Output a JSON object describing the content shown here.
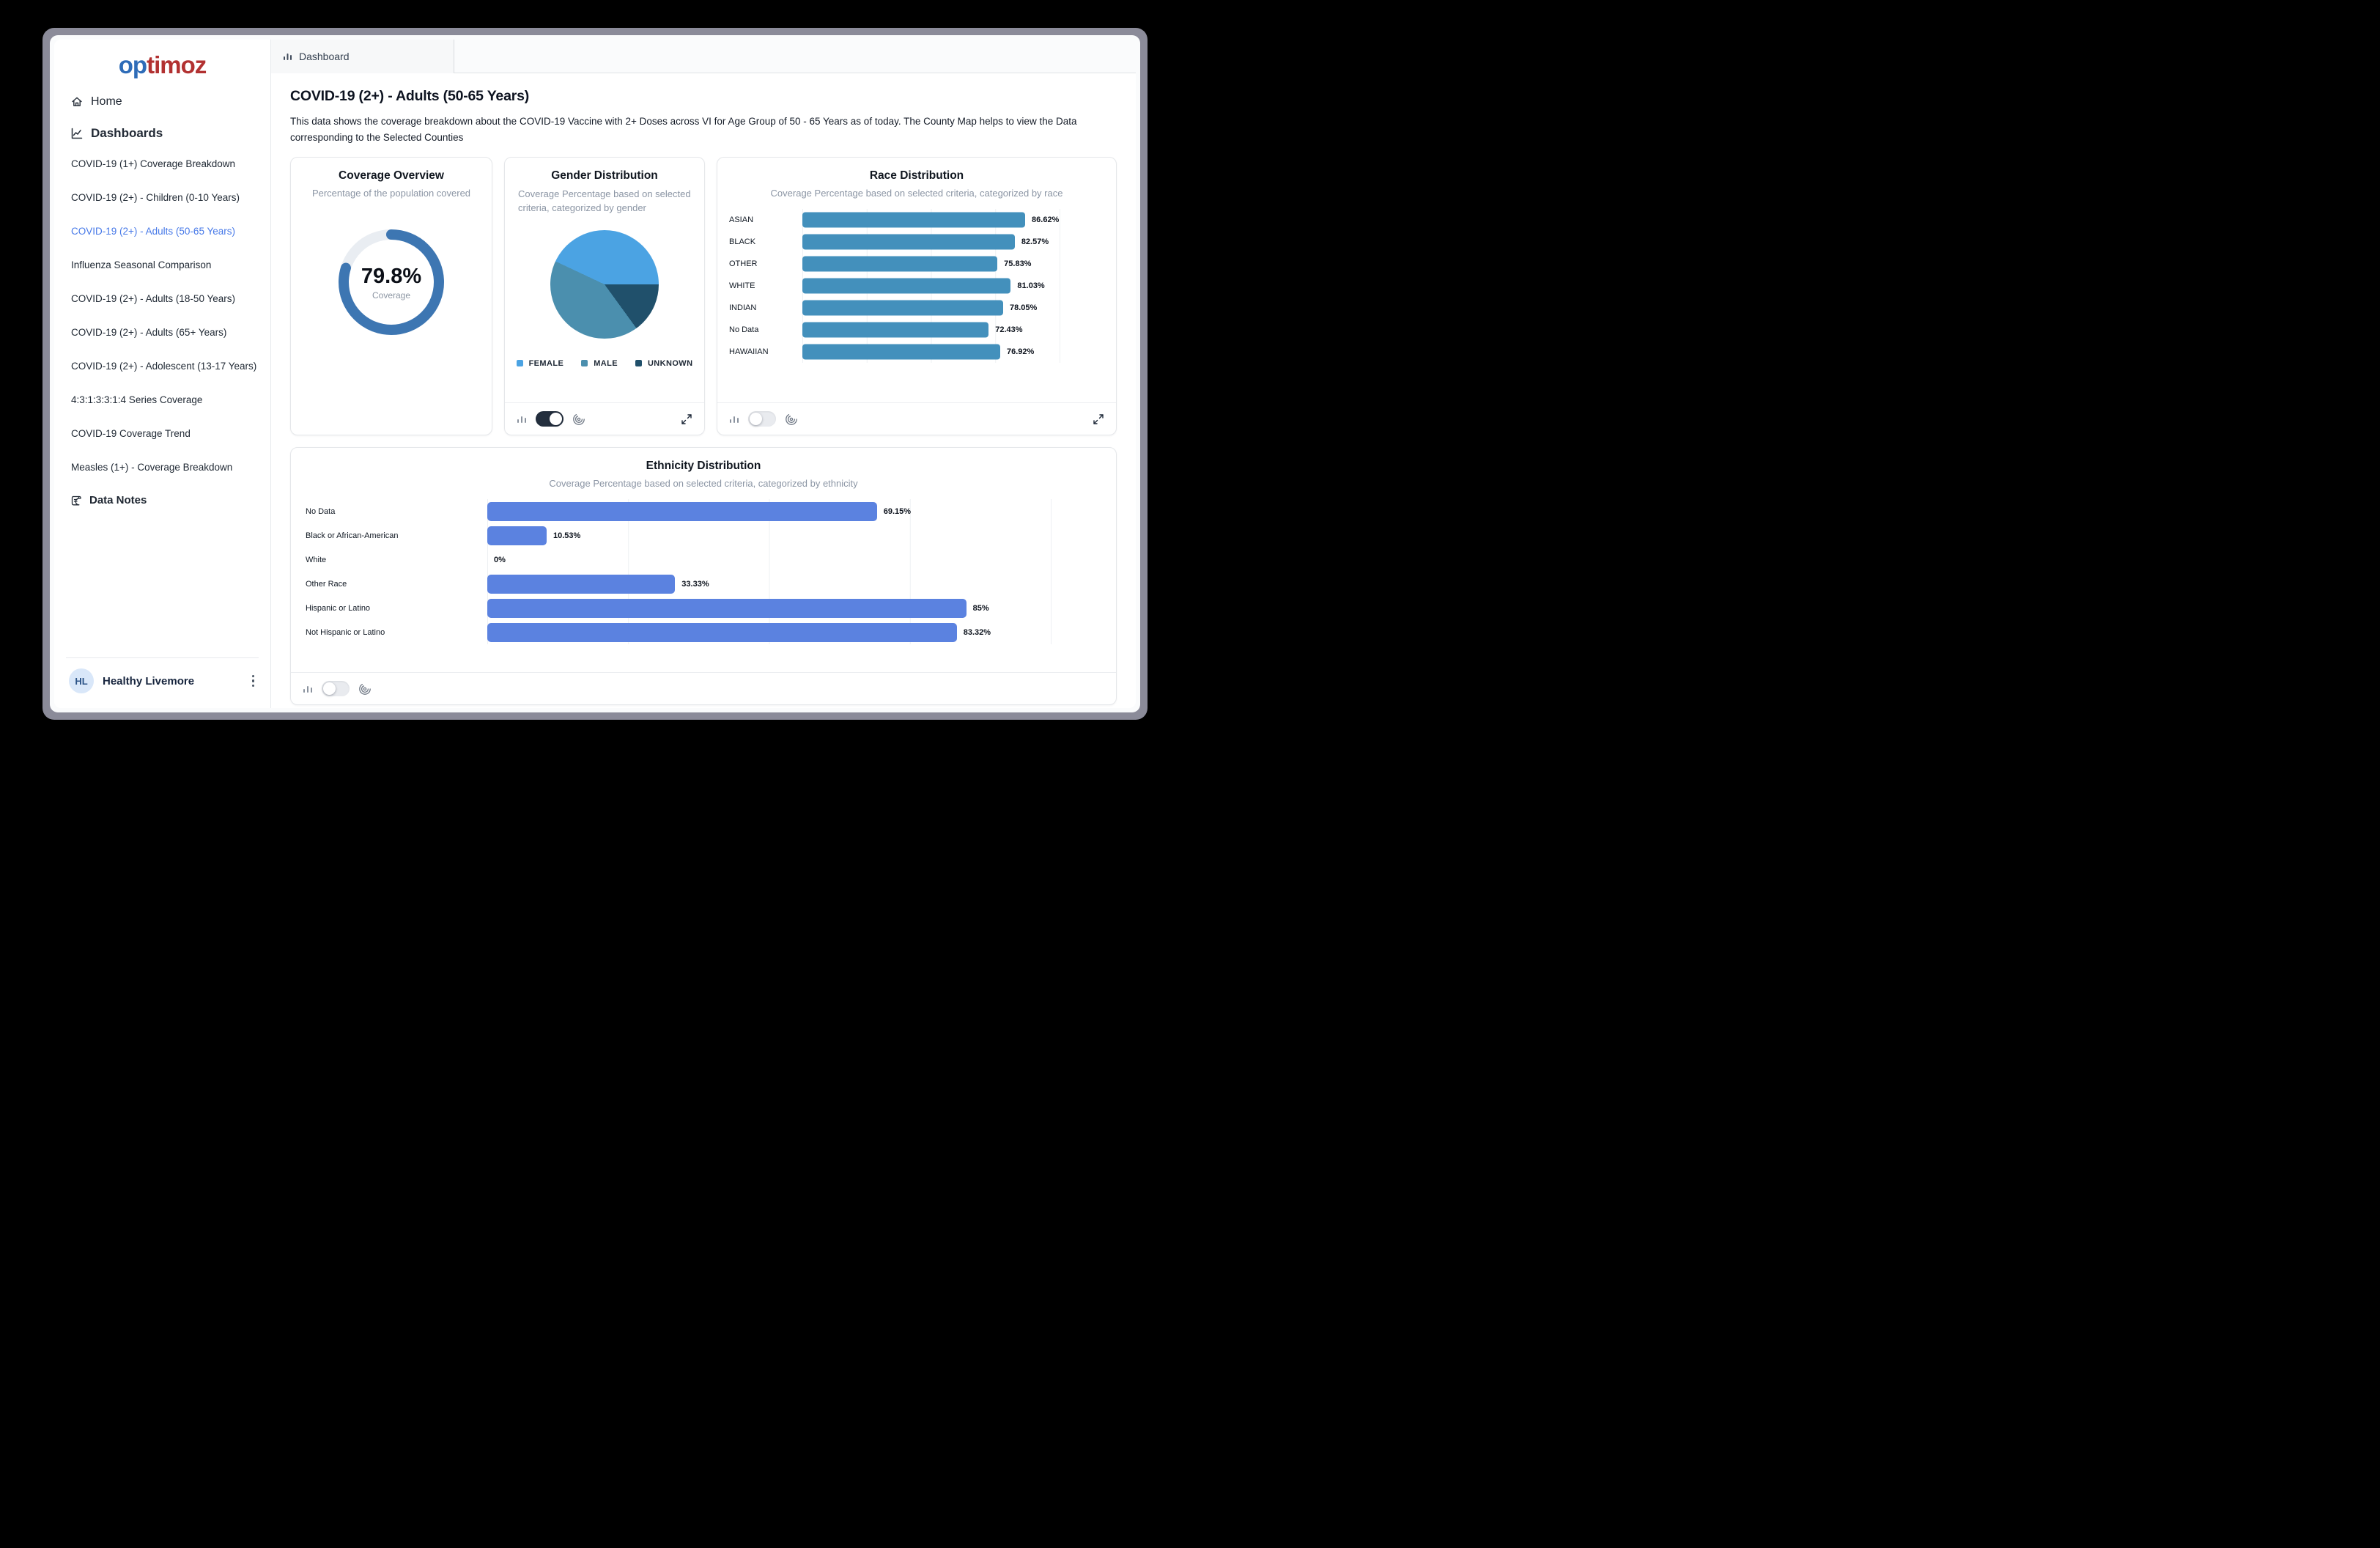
{
  "window": {
    "frame_color": "#8b8b99"
  },
  "sidebar": {
    "logo": {
      "text_primary": "op",
      "text_secondary": "timoz"
    },
    "home_label": "Home",
    "dashboards_label": "Dashboards",
    "items": [
      {
        "label": "COVID-19 (1+) Coverage Breakdown",
        "active": false
      },
      {
        "label": "COVID-19 (2+) - Children (0-10 Years)",
        "active": false
      },
      {
        "label": "COVID-19 (2+) - Adults (50-65 Years)",
        "active": true
      },
      {
        "label": "Influenza Seasonal Comparison",
        "active": false
      },
      {
        "label": "COVID-19 (2+) - Adults (18-50 Years)",
        "active": false
      },
      {
        "label": "COVID-19 (2+) - Adults (65+ Years)",
        "active": false
      },
      {
        "label": "COVID-19 (2+) - Adolescent (13-17 Years)",
        "active": false
      },
      {
        "label": "4:3:1:3:3:1:4 Series Coverage",
        "active": false
      },
      {
        "label": "COVID-19 Coverage Trend",
        "active": false
      },
      {
        "label": "Measles (1+) - Coverage Breakdown",
        "active": false
      }
    ],
    "data_notes_label": "Data Notes",
    "user": {
      "initials": "HL",
      "name": "Healthy Livemore"
    },
    "active_color": "#4779e8"
  },
  "tab": {
    "label": "Dashboard"
  },
  "page": {
    "title": "COVID-19 (2+) - Adults (50-65 Years)",
    "description": "This data shows the coverage breakdown about the COVID-19 Vaccine with 2+ Doses across VI for Age Group of 50 - 65 Years as of today. The County Map helps to view the Data corresponding to the Selected Counties"
  },
  "cards": {
    "coverage": {
      "title": "Coverage Overview",
      "subtitle": "Percentage of the population covered",
      "value": 79.8,
      "value_label": "79.8%",
      "caption": "Coverage",
      "ring_color": "#3d76b2",
      "track_color": "#e9edf2"
    },
    "gender": {
      "title": "Gender Distribution",
      "subtitle": "Coverage Percentage based on selected criteria, categorized by gender",
      "legend": [
        {
          "label": "FEMALE",
          "color": "#4ba3e3",
          "value": 43
        },
        {
          "label": "MALE",
          "color": "#4b8fae",
          "value": 42
        },
        {
          "label": "UNKNOWN",
          "color": "#20506b",
          "value": 15
        }
      ],
      "toggle_on": true,
      "has_expand": true
    },
    "race": {
      "title": "Race Distribution",
      "subtitle": "Coverage Percentage based on selected criteria, categorized by race",
      "bar_color": "#4390bc",
      "rows": [
        {
          "label": "ASIAN",
          "value": 86.62,
          "value_label": "86.62%"
        },
        {
          "label": "BLACK",
          "value": 82.57,
          "value_label": "82.57%"
        },
        {
          "label": "OTHER",
          "value": 75.83,
          "value_label": "75.83%"
        },
        {
          "label": "WHITE",
          "value": 81.03,
          "value_label": "81.03%"
        },
        {
          "label": "INDIAN",
          "value": 78.05,
          "value_label": "78.05%"
        },
        {
          "label": "No Data",
          "value": 72.43,
          "value_label": "72.43%"
        },
        {
          "label": "HAWAIIAN",
          "value": 76.92,
          "value_label": "76.92%"
        }
      ],
      "toggle_on": false,
      "has_expand": true
    },
    "ethnicity": {
      "title": "Ethnicity Distribution",
      "subtitle": "Coverage Percentage based on selected criteria, categorized by ethnicity",
      "bar_color": "#5b82e0",
      "rows": [
        {
          "label": "No Data",
          "value": 69.15,
          "value_label": "69.15%"
        },
        {
          "label": "Black or African-American",
          "value": 10.53,
          "value_label": "10.53%"
        },
        {
          "label": "White",
          "value": 0,
          "value_label": "0%"
        },
        {
          "label": "Other Race",
          "value": 33.33,
          "value_label": "33.33%"
        },
        {
          "label": "Hispanic or Latino",
          "value": 85,
          "value_label": "85%"
        },
        {
          "label": "Not Hispanic or Latino",
          "value": 83.32,
          "value_label": "83.32%"
        }
      ],
      "toggle_on": false,
      "has_expand": false
    }
  },
  "chart_data": [
    {
      "type": "donut",
      "title": "Coverage Overview",
      "subtitle": "Percentage of the population covered",
      "categories": [
        "Covered",
        "Not Covered"
      ],
      "values": [
        79.8,
        20.2
      ],
      "center_label": "79.8%",
      "center_caption": "Coverage",
      "colors": [
        "#3d76b2",
        "#e9edf2"
      ]
    },
    {
      "type": "pie",
      "title": "Gender Distribution",
      "subtitle": "Coverage Percentage based on selected criteria, categorized by gender",
      "categories": [
        "FEMALE",
        "MALE",
        "UNKNOWN"
      ],
      "values": [
        43,
        42,
        15
      ],
      "colors": [
        "#4ba3e3",
        "#4b8fae",
        "#20506b"
      ],
      "legend_position": "bottom"
    },
    {
      "type": "bar",
      "orientation": "horizontal",
      "title": "Race Distribution",
      "subtitle": "Coverage Percentage based on selected criteria, categorized by race",
      "categories": [
        "ASIAN",
        "BLACK",
        "OTHER",
        "WHITE",
        "INDIAN",
        "No Data",
        "HAWAIIAN"
      ],
      "values": [
        86.62,
        82.57,
        75.83,
        81.03,
        78.05,
        72.43,
        76.92
      ],
      "data_labels": [
        "86.62%",
        "82.57%",
        "75.83%",
        "81.03%",
        "78.05%",
        "72.43%",
        "76.92%"
      ],
      "xlim": [
        0,
        100
      ],
      "grid": true,
      "bar_color": "#4390bc"
    },
    {
      "type": "bar",
      "orientation": "horizontal",
      "title": "Ethnicity Distribution",
      "subtitle": "Coverage Percentage based on selected criteria, categorized by ethnicity",
      "categories": [
        "No Data",
        "Black or African-American",
        "White",
        "Other Race",
        "Hispanic or Latino",
        "Not Hispanic or Latino"
      ],
      "values": [
        69.15,
        10.53,
        0,
        33.33,
        85,
        83.32
      ],
      "data_labels": [
        "69.15%",
        "10.53%",
        "0%",
        "33.33%",
        "85%",
        "83.32%"
      ],
      "xlim": [
        0,
        100
      ],
      "grid": true,
      "bar_color": "#5b82e0"
    }
  ]
}
